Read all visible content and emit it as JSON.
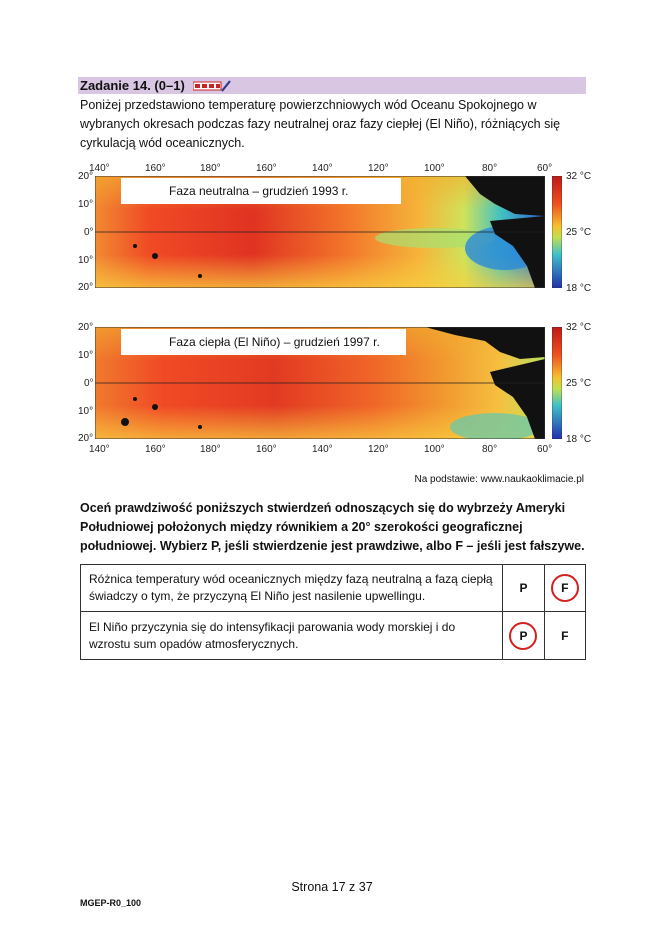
{
  "task": {
    "title": "Zadanie 14. (0–1)",
    "intro": "Poniżej przedstawiono temperaturę powierzchniowych wód Oceanu Spokojnego w wybranych okresach podczas fazy neutralnej oraz fazy ciepłej (El Niño), różniących się cyrkulacją wód oceanicznych."
  },
  "maps": {
    "longitude_labels": [
      "140°",
      "160°",
      "180°",
      "160°",
      "140°",
      "120°",
      "100°",
      "80°",
      "60°"
    ],
    "latitude_labels": [
      "20°",
      "10°",
      "0°",
      "10°",
      "20°"
    ],
    "scale_labels": [
      "32 °C",
      "25 °C",
      "18 °C"
    ],
    "neutral_label": "Faza neutralna – grudzień 1993 r.",
    "warm_label": "Faza ciepła (El Niño) – grudzień 1997 r."
  },
  "source": "Na podstawie: www.naukaoklimacie.pl",
  "question": "Oceń prawdziwość poniższych stwierdzeń odnoszących się do wybrzeży Ameryki Południowej położonych między równikiem a 20° szerokości geograficznej południowej. Wybierz P, jeśli stwierdzenie jest prawdziwe, albo F – jeśli jest fałszywe.",
  "statements": [
    {
      "text": "Różnica temperatury wód oceanicznych między fazą neutralną a fazą ciepłą świadczy o tym, że przyczyną El Niño jest nasilenie upwellingu.",
      "p": "P",
      "f": "F",
      "circled": "F"
    },
    {
      "text": "El Niño przyczynia się do intensyfikacji parowania wody morskiej i do wzrostu sum opadów atmosferycznych.",
      "p": "P",
      "f": "F",
      "circled": "P"
    }
  ],
  "footer": {
    "page": "Strona 17 z 37",
    "code": "MGEP-R0_100"
  },
  "colors": {
    "header_bg": "#d8c6e3",
    "circle": "#d42020",
    "land": "#111111"
  }
}
